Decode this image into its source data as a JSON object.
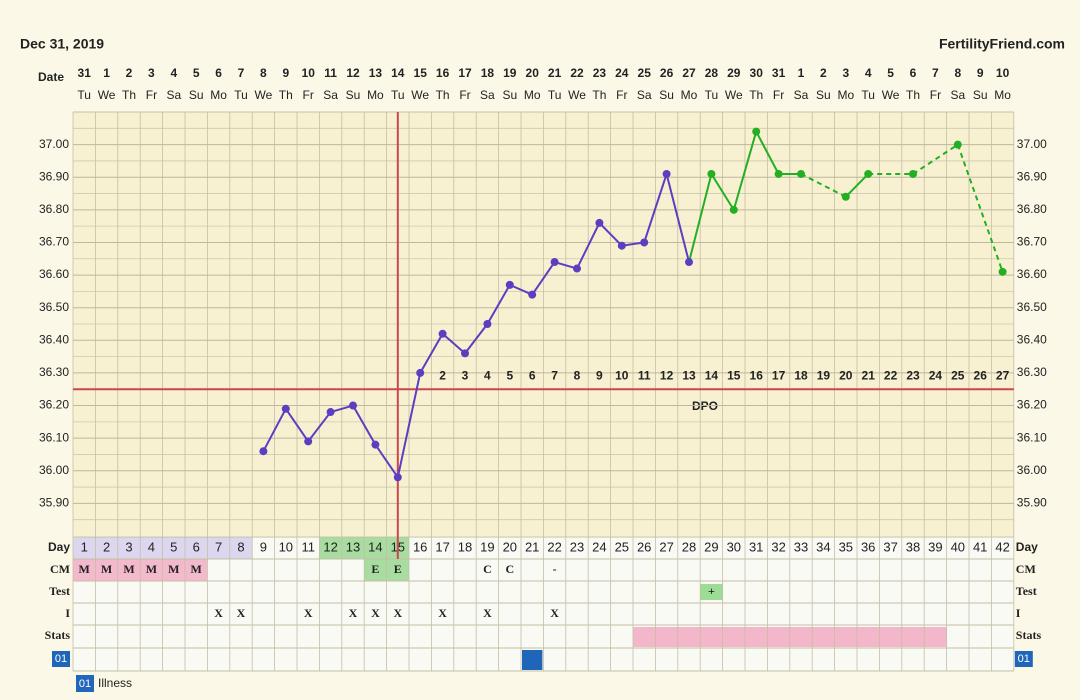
{
  "header": {
    "date": "Dec 31, 2019",
    "site": "FertilityFriend.com"
  },
  "chart_data": {
    "type": "line",
    "date_label": "Date",
    "dates": [
      "31",
      "1",
      "2",
      "3",
      "4",
      "5",
      "6",
      "7",
      "8",
      "9",
      "10",
      "11",
      "12",
      "13",
      "14",
      "15",
      "16",
      "17",
      "18",
      "19",
      "20",
      "21",
      "22",
      "23",
      "24",
      "25",
      "26",
      "27",
      "28",
      "29",
      "30",
      "31",
      "1",
      "2",
      "3",
      "4",
      "5",
      "6",
      "7",
      "8",
      "9",
      "10"
    ],
    "weekdays": [
      "Tu",
      "We",
      "Th",
      "Fr",
      "Sa",
      "Su",
      "Mo",
      "Tu",
      "We",
      "Th",
      "Fr",
      "Sa",
      "Su",
      "Mo",
      "Tu",
      "We",
      "Th",
      "Fr",
      "Sa",
      "Su",
      "Mo",
      "Tu",
      "We",
      "Th",
      "Fr",
      "Sa",
      "Su",
      "Mo",
      "Tu",
      "We",
      "Th",
      "Fr",
      "Sa",
      "Su",
      "Mo",
      "Tu",
      "We",
      "Th",
      "Fr",
      "Sa",
      "Su",
      "Mo"
    ],
    "ylim": [
      35.8,
      37.1
    ],
    "yticks": [
      {
        "value": 35.9,
        "label": "35.90"
      },
      {
        "value": 36.0,
        "label": "36.00"
      },
      {
        "value": 36.1,
        "label": "36.10"
      },
      {
        "value": 36.2,
        "label": "36.20"
      },
      {
        "value": 36.3,
        "label": "36.30"
      },
      {
        "value": 36.4,
        "label": "36.40"
      },
      {
        "value": 36.5,
        "label": "36.50"
      },
      {
        "value": 36.6,
        "label": "36.60"
      },
      {
        "value": 36.7,
        "label": "36.70"
      },
      {
        "value": 36.8,
        "label": "36.80"
      },
      {
        "value": 36.9,
        "label": "36.90"
      },
      {
        "value": 37.0,
        "label": "37.00"
      }
    ],
    "grid": true,
    "series": [
      {
        "color": "#5a3fc0",
        "x": [
          9,
          10,
          11,
          12,
          13,
          14,
          15,
          16,
          17,
          18,
          19,
          20,
          21,
          22,
          23,
          24,
          25,
          26,
          27,
          28
        ],
        "values": [
          36.06,
          36.19,
          36.09,
          36.18,
          36.2,
          36.08,
          35.98,
          36.3,
          36.42,
          36.36,
          36.45,
          36.57,
          36.54,
          36.64,
          36.62,
          36.76,
          36.69,
          36.7,
          36.91,
          36.64
        ]
      },
      {
        "color": "#22b022",
        "x": [
          29,
          30,
          31,
          32,
          33,
          35,
          36,
          38,
          40,
          42
        ],
        "values": [
          36.91,
          36.8,
          37.04,
          36.91,
          36.91,
          36.84,
          36.91,
          36.91,
          37.0,
          36.61
        ]
      }
    ],
    "coverline": 36.25,
    "ovulation_day": 15,
    "line_color": "#c9474d",
    "dpo_label": "DPO",
    "dpo": [
      2,
      3,
      4,
      5,
      6,
      7,
      8,
      9,
      10,
      11,
      12,
      13,
      14,
      15,
      16,
      17,
      18,
      19,
      20,
      21,
      22,
      23,
      24,
      25,
      26,
      27
    ],
    "table": {
      "day_label": "Day",
      "days": [
        1,
        2,
        3,
        4,
        5,
        6,
        7,
        8,
        9,
        10,
        11,
        12,
        13,
        14,
        15,
        16,
        17,
        18,
        19,
        20,
        21,
        22,
        23,
        24,
        25,
        26,
        27,
        28,
        29,
        30,
        31,
        32,
        33,
        34,
        35,
        36,
        37,
        38,
        39,
        40,
        41,
        42
      ],
      "cm_label": "CM",
      "cm": [
        "M",
        "M",
        "M",
        "M",
        "M",
        "M",
        null,
        null,
        null,
        null,
        null,
        null,
        null,
        "E",
        "E",
        null,
        null,
        null,
        "C",
        "C",
        null,
        "-",
        null,
        null,
        null,
        null,
        null,
        null,
        null,
        null,
        null,
        null,
        null,
        null,
        null,
        null,
        null,
        null,
        null,
        null,
        null,
        null
      ],
      "test_label": "Test",
      "test": [
        null,
        null,
        null,
        null,
        null,
        null,
        null,
        null,
        null,
        null,
        null,
        null,
        null,
        null,
        null,
        null,
        null,
        null,
        null,
        null,
        null,
        null,
        null,
        null,
        null,
        null,
        null,
        null,
        "+",
        null,
        null,
        null,
        null,
        null,
        null,
        null,
        null,
        null,
        null,
        null,
        null,
        null
      ],
      "intercourse_label": "I",
      "intercourse": [
        null,
        null,
        null,
        null,
        null,
        null,
        "X",
        "X",
        null,
        null,
        "X",
        null,
        "X",
        "X",
        "X",
        null,
        "X",
        null,
        "X",
        null,
        null,
        "X",
        null,
        null,
        null,
        null,
        null,
        null,
        null,
        null,
        null,
        null,
        null,
        null,
        null,
        null,
        null,
        null,
        null,
        null,
        null,
        null
      ],
      "stats_label": "Stats"
    },
    "legend": {
      "badge": "01",
      "illness": "Illness"
    }
  }
}
